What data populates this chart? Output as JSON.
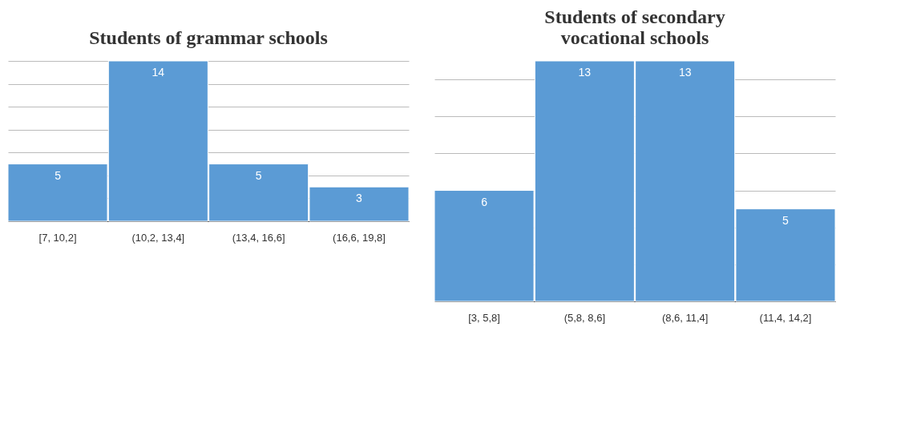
{
  "chart_data": [
    {
      "type": "bar",
      "title": "Students of grammar schools",
      "categories": [
        "[7, 10,2]",
        "(10,2, 13,4]",
        "(13,4, 16,6]",
        "(16,6, 19,8]"
      ],
      "values": [
        5,
        14,
        5,
        3
      ],
      "color": "#5b9bd5",
      "grid": "y",
      "tick_labels": "x",
      "data_labels": true
    },
    {
      "type": "bar",
      "title": "Students of secondary vocational schools",
      "categories": [
        "[3, 5,8]",
        "(5,8, 8,6]",
        "(8,6, 11,4]",
        "(11,4, 14,2]"
      ],
      "values": [
        6,
        13,
        13,
        5
      ],
      "color": "#5b9bd5",
      "grid": "y",
      "tick_labels": "x",
      "data_labels": true
    }
  ]
}
